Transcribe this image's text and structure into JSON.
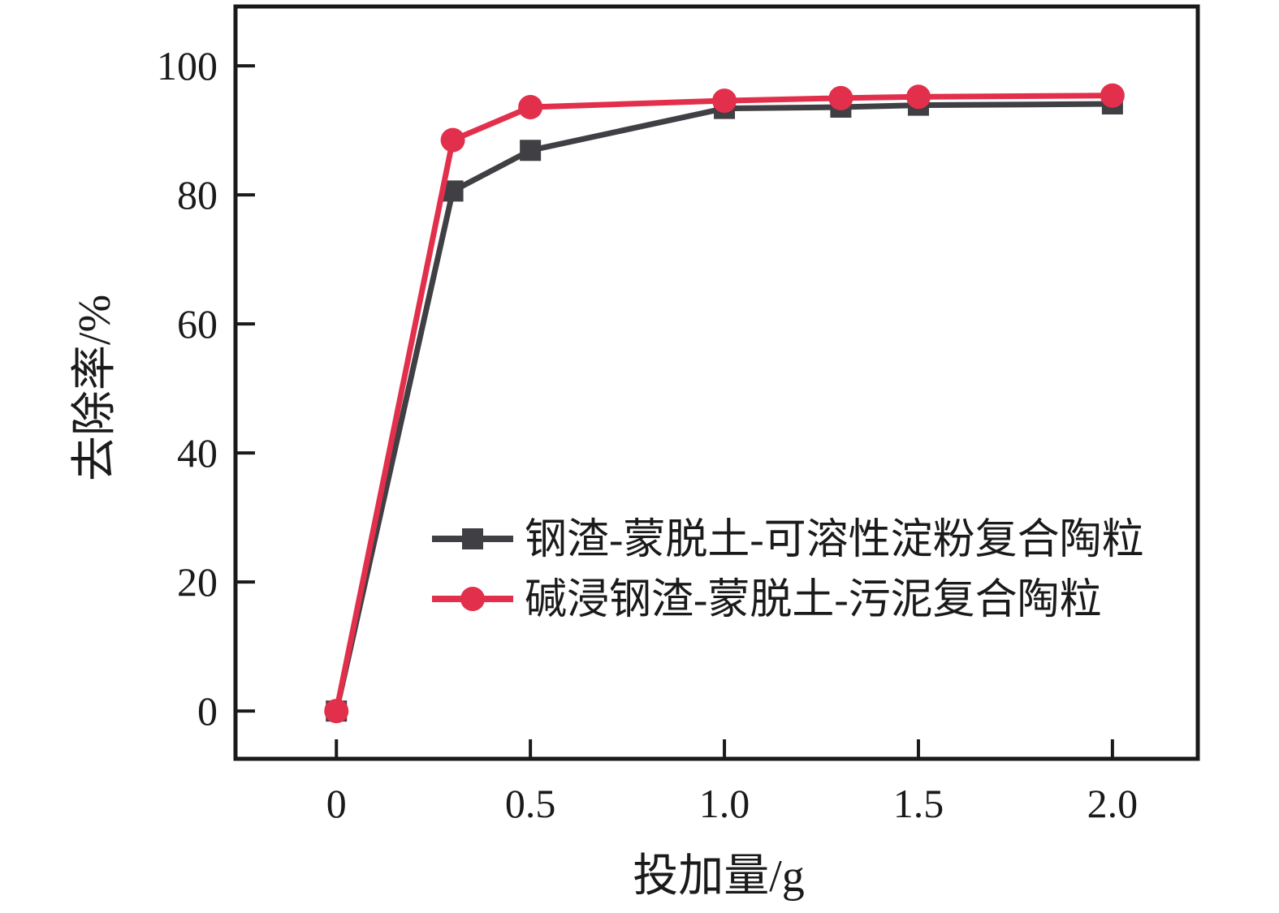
{
  "chart_data": {
    "type": "line",
    "title": "",
    "xlabel": "投加量/g",
    "ylabel": "去除率/%",
    "xlim": [
      -0.26,
      2.22
    ],
    "ylim": [
      -7.4,
      109.2
    ],
    "grid": false,
    "legend_position": "inside-center-right",
    "x_ticks": {
      "values": [
        0,
        0.5,
        1.0,
        1.5,
        2.0
      ],
      "labels": [
        "0",
        "0.5",
        "1.0",
        "1.5",
        "2.0"
      ]
    },
    "y_ticks": {
      "values": [
        0,
        20,
        40,
        60,
        80,
        100
      ],
      "labels": [
        "0",
        "20",
        "40",
        "60",
        "80",
        "100"
      ]
    },
    "series": [
      {
        "name": "钢渣-蒙脱土-可溶性淀粉复合陶粒",
        "marker": "square",
        "color": "#3f3f44",
        "x": [
          0,
          0.3,
          0.5,
          1.0,
          1.3,
          1.5,
          2.0
        ],
        "y": [
          0,
          80.6,
          86.9,
          93.4,
          93.6,
          93.9,
          94.1
        ]
      },
      {
        "name": "碱浸钢渣-蒙脱土-污泥复合陶粒",
        "marker": "circle",
        "color": "#e2304c",
        "x": [
          0,
          0.3,
          0.5,
          1.0,
          1.3,
          1.5,
          2.0
        ],
        "y": [
          0,
          88.5,
          93.6,
          94.6,
          95.0,
          95.2,
          95.4
        ]
      }
    ],
    "axis_color": "#1a1a1a",
    "background_color": "#ffffff"
  }
}
